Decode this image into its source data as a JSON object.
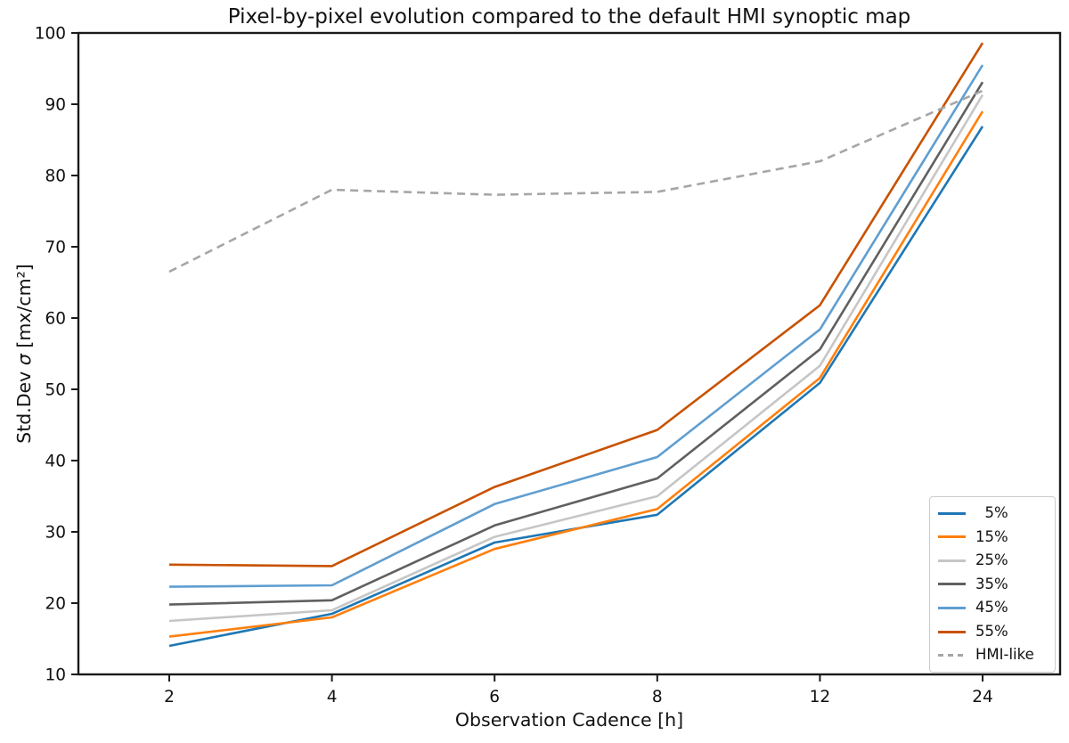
{
  "chart_data": {
    "type": "line",
    "title": "Pixel-by-pixel evolution compared to the default HMI synoptic map",
    "xlabel": "Observation Cadence [h]",
    "ylabel": "Std.Dev σ [mx/cm²]",
    "ylabel_parts": {
      "prefix": "Std.Dev ",
      "sigma": "σ",
      "suffix": " [mx/cm²]"
    },
    "x_tick_labels": [
      "2",
      "4",
      "6",
      "8",
      "12",
      "24"
    ],
    "x_values": [
      2,
      4,
      6,
      8,
      12,
      24
    ],
    "y_ticks": [
      10,
      20,
      30,
      40,
      50,
      60,
      70,
      80,
      90,
      100
    ],
    "ylim": [
      10,
      100
    ],
    "grid": false,
    "legend_position": "lower right",
    "axis_color": "#1a1a1a",
    "series": [
      {
        "name": "5%",
        "label": "  5%",
        "color": "#1f77b4",
        "dash": false,
        "values": [
          14.0,
          18.5,
          28.5,
          32.4,
          50.9,
          86.9
        ]
      },
      {
        "name": "15%",
        "label": "15%",
        "color": "#ff7f0e",
        "dash": false,
        "values": [
          15.3,
          18.0,
          27.6,
          33.2,
          51.6,
          89.0
        ]
      },
      {
        "name": "25%",
        "label": "25%",
        "color": "#c6c6c6",
        "dash": false,
        "values": [
          17.5,
          19.0,
          29.3,
          35.0,
          53.3,
          91.3
        ]
      },
      {
        "name": "35%",
        "label": "35%",
        "color": "#606060",
        "dash": false,
        "values": [
          19.8,
          20.4,
          30.9,
          37.5,
          55.6,
          93.1
        ]
      },
      {
        "name": "45%",
        "label": "45%",
        "color": "#5f9ed1",
        "dash": false,
        "values": [
          22.3,
          22.5,
          33.9,
          40.5,
          58.4,
          95.5
        ]
      },
      {
        "name": "55%",
        "label": "55%",
        "color": "#c85200",
        "dash": false,
        "values": [
          25.4,
          25.2,
          36.3,
          44.3,
          61.8,
          98.6
        ]
      },
      {
        "name": "HMI-like",
        "label": "HMI-like",
        "color": "#a6a6a6",
        "dash": true,
        "values": [
          66.5,
          78.0,
          77.3,
          77.7,
          82.0,
          91.9
        ]
      }
    ]
  }
}
